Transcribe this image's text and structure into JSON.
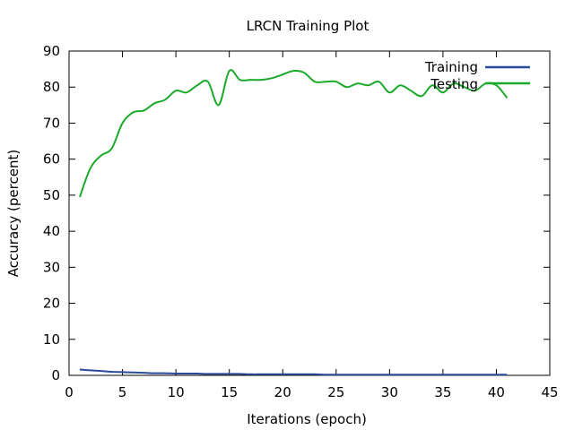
{
  "chart_data": {
    "type": "line",
    "title": "LRCN Training Plot",
    "xlabel": "Iterations (epoch)",
    "ylabel": "Accuracy (percent)",
    "xlim": [
      0,
      45
    ],
    "ylim": [
      0,
      90
    ],
    "xticks": [
      0,
      5,
      10,
      15,
      20,
      25,
      30,
      35,
      40,
      45
    ],
    "yticks": [
      0,
      10,
      20,
      30,
      40,
      50,
      60,
      70,
      80,
      90
    ],
    "x_tick_labels": [
      "0",
      "5",
      "10",
      "15",
      "20",
      "25",
      "30",
      "35",
      "40",
      "45"
    ],
    "y_tick_labels": [
      "0",
      "10",
      "20",
      "30",
      "40",
      "50",
      "60",
      "70",
      "80",
      "90"
    ],
    "grid": false,
    "legend_position": "top-right",
    "series": [
      {
        "name": "Training",
        "color": "#2b4a9a",
        "x": [
          1,
          2,
          3,
          4,
          5,
          6,
          7,
          8,
          9,
          10,
          11,
          12,
          13,
          14,
          15,
          16,
          17,
          18,
          19,
          20,
          21,
          22,
          23,
          24,
          25,
          26,
          27,
          28,
          29,
          30,
          31,
          32,
          33,
          34,
          35,
          36,
          37,
          38,
          39,
          40,
          41
        ],
        "y": [
          1.6,
          1.4,
          1.2,
          1.0,
          0.9,
          0.8,
          0.7,
          0.6,
          0.6,
          0.5,
          0.5,
          0.5,
          0.4,
          0.4,
          0.4,
          0.4,
          0.3,
          0.3,
          0.3,
          0.3,
          0.3,
          0.3,
          0.3,
          0.2,
          0.2,
          0.2,
          0.2,
          0.2,
          0.2,
          0.2,
          0.2,
          0.2,
          0.2,
          0.2,
          0.2,
          0.2,
          0.2,
          0.2,
          0.2,
          0.2,
          0.2
        ]
      },
      {
        "name": "Testing",
        "color": "#1aaa2a",
        "x": [
          1,
          2,
          3,
          4,
          5,
          6,
          7,
          8,
          9,
          10,
          11,
          12,
          13,
          14,
          15,
          16,
          17,
          18,
          19,
          20,
          21,
          22,
          23,
          24,
          25,
          26,
          27,
          28,
          29,
          30,
          31,
          32,
          33,
          34,
          35,
          36,
          37,
          38,
          39,
          40,
          41
        ],
        "y": [
          49.5,
          57.5,
          61,
          63,
          70,
          73,
          73.5,
          75.5,
          76.5,
          79,
          78.5,
          80.5,
          81.5,
          75,
          84.5,
          82,
          82,
          82,
          82.5,
          83.5,
          84.5,
          84,
          81.5,
          81.5,
          81.5,
          80,
          81,
          80.5,
          81.5,
          78.5,
          80.5,
          79,
          77.5,
          80.5,
          78.5,
          81,
          80,
          79,
          81,
          80.5,
          77
        ]
      }
    ]
  }
}
